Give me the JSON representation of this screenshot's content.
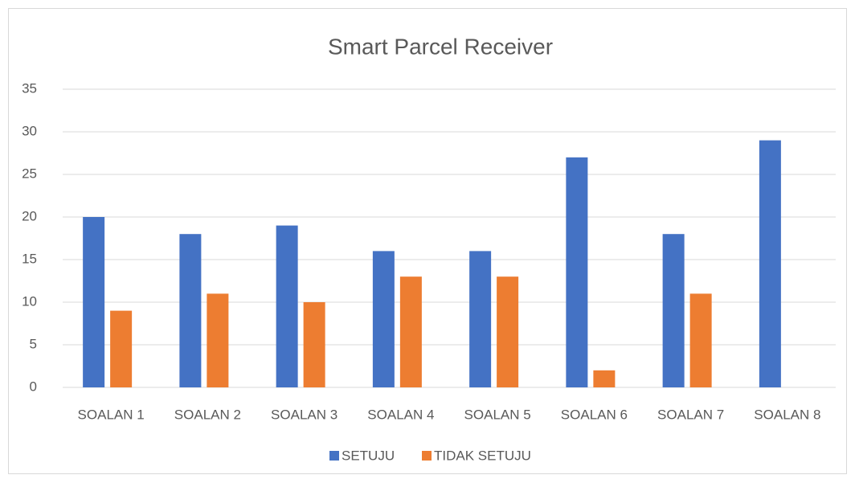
{
  "chart_data": {
    "type": "bar",
    "title": "Smart Parcel Receiver",
    "categories": [
      "SOALAN 1",
      "SOALAN 2",
      "SOALAN 3",
      "SOALAN 4",
      "SOALAN 5",
      "SOALAN 6",
      "SOALAN 7",
      "SOALAN 8"
    ],
    "series": [
      {
        "name": "SETUJU",
        "color": "#4472c4",
        "values": [
          20,
          18,
          19,
          16,
          16,
          27,
          18,
          29
        ]
      },
      {
        "name": "TIDAK SETUJU",
        "color": "#ed7d31",
        "values": [
          9,
          11,
          10,
          13,
          13,
          2,
          11,
          0
        ]
      }
    ],
    "ylim": [
      0,
      35
    ],
    "yticks": [
      0,
      5,
      10,
      15,
      20,
      25,
      30,
      35
    ],
    "grid": true,
    "legend": "bottom"
  }
}
